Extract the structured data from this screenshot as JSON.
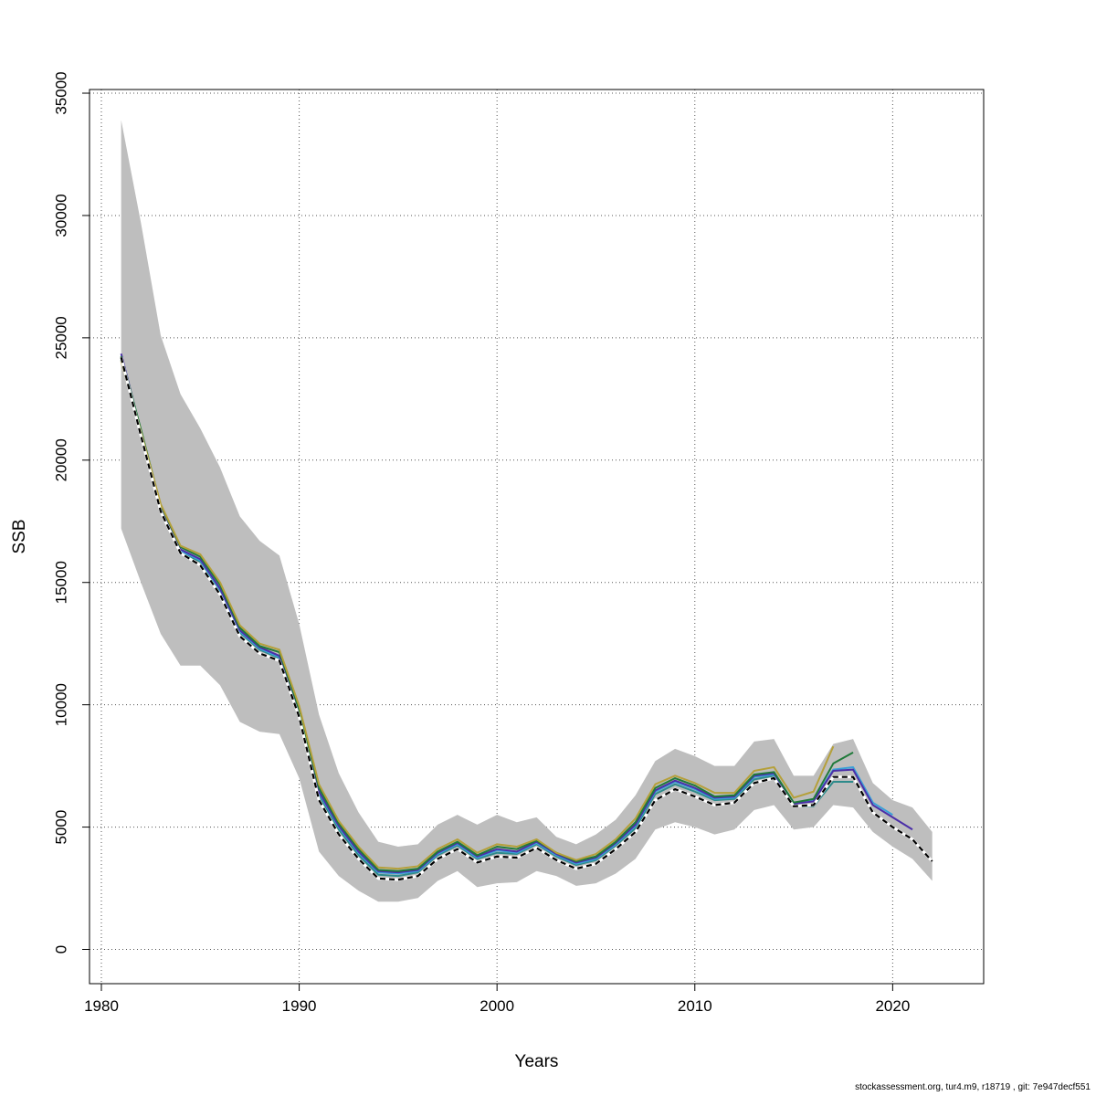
{
  "chart_data": {
    "type": "line",
    "title": "",
    "xlabel": "Years",
    "ylabel": "SSB",
    "xlim": [
      1979.4,
      2024.6
    ],
    "ylim": [
      -1400,
      35150
    ],
    "xticks": [
      1980,
      1990,
      2000,
      2010,
      2020
    ],
    "yticks": [
      0,
      5000,
      10000,
      15000,
      20000,
      25000,
      30000,
      35000
    ],
    "grid": true,
    "legend": "none",
    "band": {
      "color": "#bebebe",
      "x": [
        1981,
        1982,
        1983,
        1984,
        1985,
        1986,
        1987,
        1988,
        1989,
        1990,
        1991,
        1992,
        1993,
        1994,
        1995,
        1996,
        1997,
        1998,
        1999,
        2000,
        2001,
        2002,
        2003,
        2004,
        2005,
        2006,
        2007,
        2008,
        2009,
        2010,
        2011,
        2012,
        2013,
        2014,
        2015,
        2016,
        2017,
        2018,
        2019,
        2020,
        2021,
        2022
      ],
      "upper": [
        33900,
        29700,
        25100,
        22700,
        21300,
        19700,
        17700,
        16700,
        16100,
        13300,
        9600,
        7200,
        5600,
        4400,
        4200,
        4300,
        5100,
        5500,
        5100,
        5500,
        5200,
        5400,
        4600,
        4300,
        4700,
        5300,
        6300,
        7700,
        8200,
        7900,
        7500,
        7500,
        8500,
        8600,
        7100,
        7100,
        8400,
        8600,
        6800,
        6100,
        5800,
        4800
      ],
      "lower": [
        17200,
        15000,
        12900,
        11600,
        11600,
        10800,
        9300,
        8900,
        8800,
        7000,
        4000,
        3000,
        2400,
        1950,
        1950,
        2100,
        2800,
        3200,
        2550,
        2700,
        2750,
        3200,
        3000,
        2600,
        2700,
        3100,
        3700,
        4900,
        5200,
        5000,
        4700,
        4900,
        5700,
        5900,
        4900,
        5000,
        5900,
        5800,
        4800,
        4200,
        3700,
        2800
      ]
    },
    "series": [
      {
        "color": "#000000",
        "dashed": true,
        "x": [
          1981,
          1982,
          1983,
          1984,
          1985,
          1986,
          1987,
          1988,
          1989,
          1990,
          1991,
          1992,
          1993,
          1994,
          1995,
          1996,
          1997,
          1998,
          1999,
          2000,
          2001,
          2002,
          2003,
          2004,
          2005,
          2006,
          2007,
          2008,
          2009,
          2010,
          2011,
          2012,
          2013,
          2014,
          2015,
          2016,
          2017,
          2018,
          2019,
          2020,
          2021,
          2022
        ],
        "values": [
          24200,
          21000,
          17900,
          16200,
          15700,
          14500,
          12800,
          12100,
          11800,
          9500,
          6100,
          4700,
          3700,
          2900,
          2850,
          3000,
          3700,
          4100,
          3550,
          3800,
          3750,
          4150,
          3650,
          3300,
          3500,
          4100,
          4800,
          6100,
          6550,
          6250,
          5900,
          6000,
          6800,
          7000,
          5850,
          5900,
          7050,
          7050,
          5600,
          5000,
          4500,
          3600
        ]
      },
      {
        "color": "#2e8b8b",
        "dashed": false,
        "x": [
          1981,
          1982,
          1983,
          1984,
          1985,
          1986,
          1987,
          1988,
          1989,
          1990,
          1991,
          1992,
          1993,
          1994,
          1995,
          1996,
          1997,
          1998,
          1999,
          2000,
          2001,
          2002,
          2003,
          2004,
          2005,
          2006,
          2007,
          2008,
          2009,
          2010,
          2011,
          2012,
          2013,
          2014,
          2015,
          2016,
          2017,
          2018
        ],
        "values": [
          24100,
          21100,
          18000,
          16250,
          15850,
          14650,
          12950,
          12250,
          11900,
          9600,
          6300,
          4900,
          3850,
          3050,
          3000,
          3150,
          3850,
          4250,
          3700,
          3950,
          3900,
          4300,
          3800,
          3450,
          3650,
          4250,
          4950,
          6350,
          6750,
          6450,
          6100,
          6150,
          6950,
          7100,
          5850,
          5850,
          6850,
          6850
        ]
      },
      {
        "color": "#3aa0d8",
        "dashed": false,
        "x": [
          1981,
          1982,
          1983,
          1984,
          1985,
          1986,
          1987,
          1988,
          1989,
          1990,
          1991,
          1992,
          1993,
          1994,
          1995,
          1996,
          1997,
          1998,
          1999,
          2000,
          2001,
          2002,
          2003,
          2004,
          2005,
          2006,
          2007,
          2008,
          2009,
          2010,
          2011,
          2012,
          2013,
          2014,
          2015,
          2016,
          2017,
          2018,
          2019,
          2020
        ],
        "values": [
          24150,
          21150,
          18050,
          16300,
          15900,
          14700,
          13000,
          12300,
          11950,
          9650,
          6400,
          5000,
          3950,
          3150,
          3100,
          3200,
          3900,
          4300,
          3750,
          4050,
          3950,
          4350,
          3850,
          3500,
          3700,
          4300,
          5050,
          6450,
          6850,
          6550,
          6150,
          6200,
          7050,
          7150,
          5950,
          6100,
          7350,
          7450,
          6000,
          5500
        ]
      },
      {
        "color": "#4b2fa8",
        "dashed": false,
        "x": [
          1981,
          1982,
          1983,
          1984,
          1985,
          1986,
          1987,
          1988,
          1989,
          1990,
          1991,
          1992,
          1993,
          1994,
          1995,
          1996,
          1997,
          1998,
          1999,
          2000,
          2001,
          2002,
          2003,
          2004,
          2005,
          2006,
          2007,
          2008,
          2009,
          2010,
          2011,
          2012,
          2013,
          2014,
          2015,
          2016,
          2017,
          2018,
          2019,
          2020,
          2021
        ],
        "values": [
          24350,
          21200,
          18100,
          16350,
          15950,
          14750,
          13050,
          12350,
          12000,
          9700,
          6450,
          5050,
          4000,
          3200,
          3150,
          3250,
          3950,
          4350,
          3800,
          4100,
          4000,
          4400,
          3900,
          3550,
          3750,
          4350,
          5100,
          6500,
          6900,
          6600,
          6200,
          6250,
          7100,
          7200,
          5950,
          6050,
          7300,
          7350,
          5900,
          5400,
          4900
        ]
      },
      {
        "color": "#1f7a3a",
        "dashed": false,
        "x": [
          1981,
          1982,
          1983,
          1984,
          1985,
          1986,
          1987,
          1988,
          1989,
          1990,
          1991,
          1992,
          1993,
          1994,
          1995,
          1996,
          1997,
          1998,
          1999,
          2000,
          2001,
          2002,
          2003,
          2004,
          2005,
          2006,
          2007,
          2008,
          2009,
          2010,
          2011,
          2012,
          2013,
          2014,
          2015,
          2016,
          2017,
          2018
        ],
        "values": [
          24250,
          21250,
          18150,
          16450,
          16050,
          14900,
          13150,
          12400,
          12150,
          9800,
          6600,
          5150,
          4100,
          3250,
          3200,
          3300,
          4000,
          4400,
          3850,
          4200,
          4100,
          4450,
          3950,
          3600,
          3800,
          4400,
          5200,
          6600,
          7000,
          6700,
          6250,
          6300,
          7150,
          7250,
          6000,
          6150,
          7600,
          8050
        ]
      },
      {
        "color": "#b5a03a",
        "dashed": false,
        "x": [
          1981,
          1982,
          1983,
          1984,
          1985,
          1986,
          1987,
          1988,
          1989,
          1990,
          1991,
          1992,
          1993,
          1994,
          1995,
          1996,
          1997,
          1998,
          1999,
          2000,
          2001,
          2002,
          2003,
          2004,
          2005,
          2006,
          2007,
          2008,
          2009,
          2010,
          2011,
          2012,
          2013,
          2014,
          2015,
          2016,
          2017
        ],
        "values": [
          24050,
          21150,
          18200,
          16500,
          16150,
          15000,
          13250,
          12500,
          12250,
          9950,
          6750,
          5250,
          4200,
          3350,
          3300,
          3400,
          4100,
          4500,
          3950,
          4300,
          4200,
          4500,
          3950,
          3650,
          3900,
          4500,
          5350,
          6750,
          7100,
          6800,
          6400,
          6400,
          7300,
          7450,
          6200,
          6450,
          8300
        ]
      }
    ]
  },
  "footer": "stockassessment.org, tur4.m9, r18719 , git: 7e947decf551"
}
